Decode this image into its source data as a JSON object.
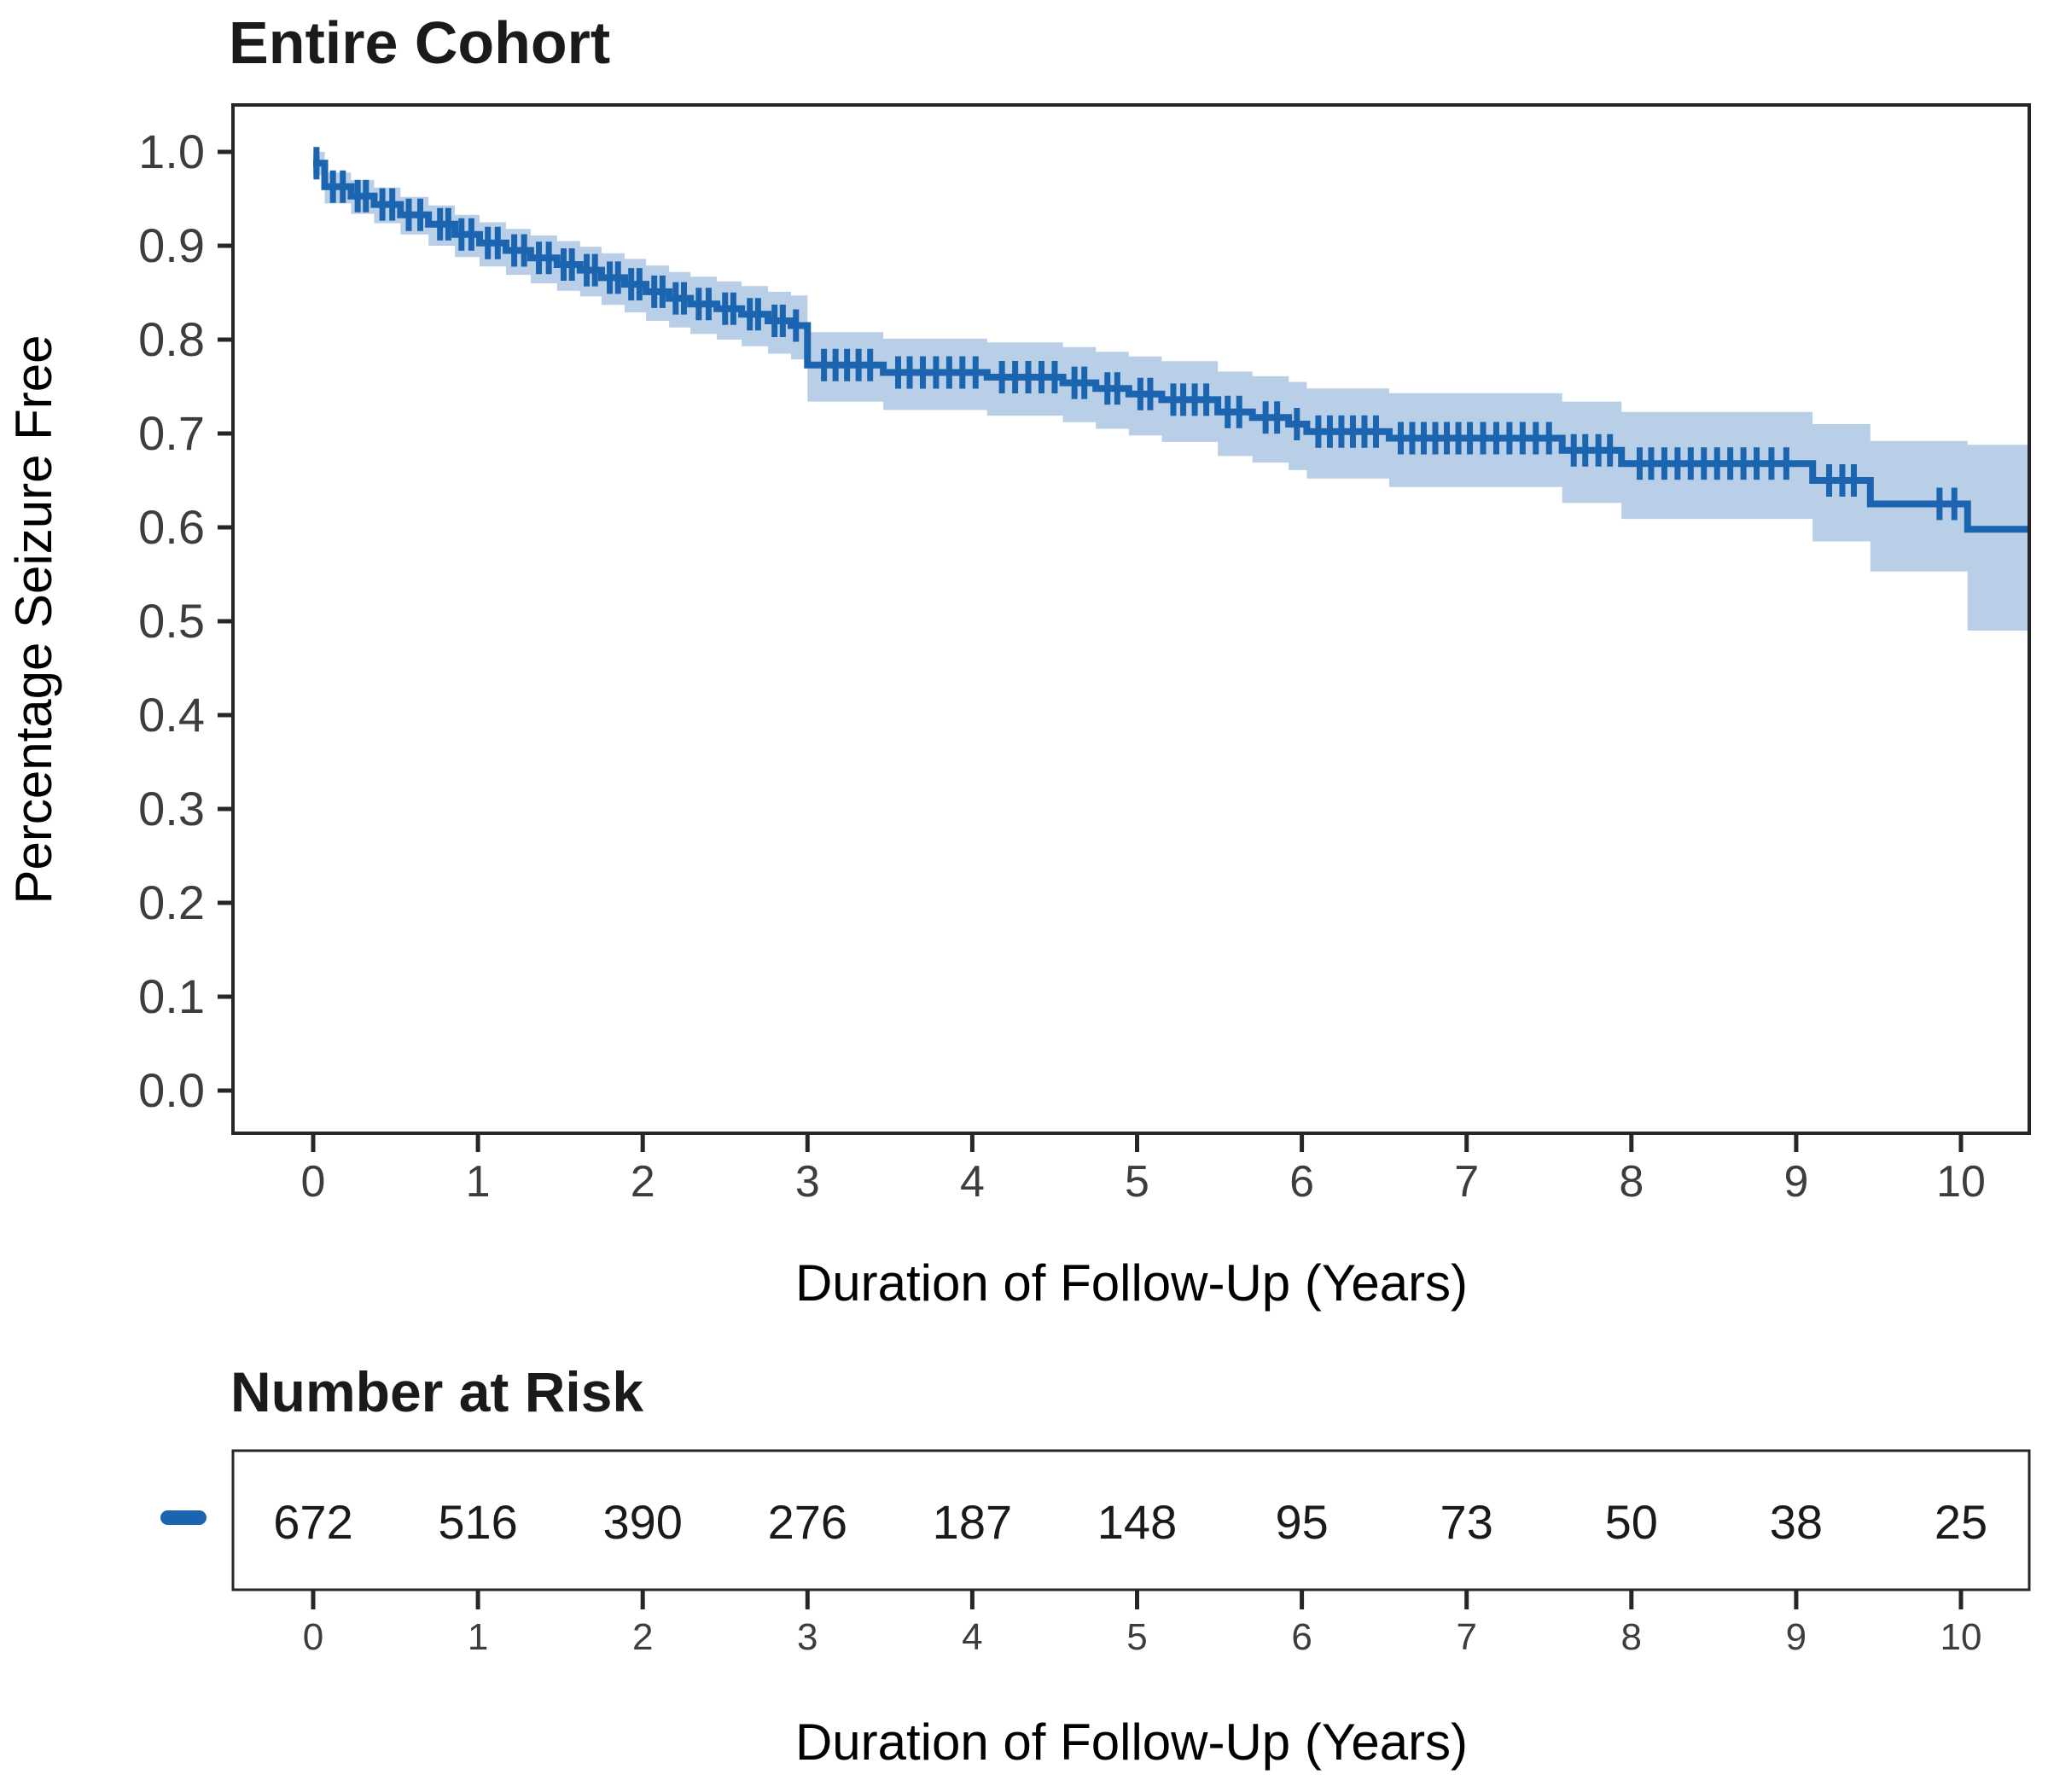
{
  "title": "Entire Cohort",
  "axes": {
    "ylabel": "Percentage Seizure Free",
    "xlabel": "Duration of Follow-Up (Years)",
    "ytick_labels": [
      "0.0",
      "0.1",
      "0.2",
      "0.3",
      "0.4",
      "0.5",
      "0.6",
      "0.7",
      "0.8",
      "0.9",
      "1.0"
    ],
    "xtick_labels": [
      "0",
      "1",
      "2",
      "3",
      "4",
      "5",
      "6",
      "7",
      "8",
      "9",
      "10"
    ]
  },
  "risk_table": {
    "heading": "Number at Risk",
    "xlabel": "Duration of Follow-Up (Years)",
    "tick_labels": [
      "0",
      "1",
      "2",
      "3",
      "4",
      "5",
      "6",
      "7",
      "8",
      "9",
      "10"
    ],
    "counts": [
      "672",
      "516",
      "390",
      "276",
      "187",
      "148",
      "95",
      "73",
      "50",
      "38",
      "25"
    ]
  },
  "colors": {
    "line": "#1b64b0",
    "band": "#b9cfe8",
    "axis": "#262626",
    "tick_text": "#3d3d3d",
    "text": "#000000"
  },
  "chart_data": {
    "type": "line",
    "subtype": "kaplan-meier-step",
    "title": "Entire Cohort",
    "xlabel": "Duration of Follow-Up (Years)",
    "ylabel": "Percentage Seizure Free",
    "xlim": [
      -0.5,
      10.45
    ],
    "ylim": [
      -0.05,
      1.05
    ],
    "x_ticks": [
      0,
      1,
      2,
      3,
      4,
      5,
      6,
      7,
      8,
      9,
      10
    ],
    "y_ticks": [
      0.0,
      0.1,
      0.2,
      0.3,
      0.4,
      0.5,
      0.6,
      0.7,
      0.8,
      0.9,
      1.0
    ],
    "grid": false,
    "legend_position": "left-of-risk-table",
    "end_time": 10.42,
    "steps": [
      [
        0.0,
        0.988
      ],
      [
        0.07,
        0.963
      ],
      [
        0.23,
        0.953
      ],
      [
        0.37,
        0.944
      ],
      [
        0.53,
        0.933
      ],
      [
        0.7,
        0.923
      ],
      [
        0.86,
        0.912
      ],
      [
        1.01,
        0.903
      ],
      [
        1.17,
        0.895
      ],
      [
        1.32,
        0.887
      ],
      [
        1.48,
        0.88
      ],
      [
        1.62,
        0.874
      ],
      [
        1.75,
        0.866
      ],
      [
        1.89,
        0.859
      ],
      [
        2.02,
        0.851
      ],
      [
        2.16,
        0.844
      ],
      [
        2.29,
        0.838
      ],
      [
        2.45,
        0.833
      ],
      [
        2.6,
        0.827
      ],
      [
        2.76,
        0.82
      ],
      [
        2.9,
        0.815
      ],
      [
        3.0,
        0.773
      ],
      [
        3.46,
        0.765
      ],
      [
        4.09,
        0.76
      ],
      [
        4.55,
        0.754
      ],
      [
        4.75,
        0.748
      ],
      [
        4.95,
        0.742
      ],
      [
        5.15,
        0.736
      ],
      [
        5.49,
        0.723
      ],
      [
        5.7,
        0.717
      ],
      [
        5.92,
        0.71
      ],
      [
        6.03,
        0.702
      ],
      [
        6.53,
        0.695
      ],
      [
        7.58,
        0.682
      ],
      [
        7.94,
        0.668
      ],
      [
        9.1,
        0.65
      ],
      [
        9.45,
        0.625
      ],
      [
        10.04,
        0.598
      ]
    ],
    "confidence_band": [
      [
        0.0,
        0.975,
        1.0
      ],
      [
        0.07,
        0.945,
        0.978
      ],
      [
        0.23,
        0.934,
        0.97
      ],
      [
        0.37,
        0.924,
        0.962
      ],
      [
        0.53,
        0.912,
        0.952
      ],
      [
        0.7,
        0.9,
        0.943
      ],
      [
        0.86,
        0.888,
        0.933
      ],
      [
        1.01,
        0.878,
        0.925
      ],
      [
        1.17,
        0.869,
        0.918
      ],
      [
        1.32,
        0.86,
        0.911
      ],
      [
        1.48,
        0.852,
        0.905
      ],
      [
        1.62,
        0.846,
        0.899
      ],
      [
        1.75,
        0.837,
        0.892
      ],
      [
        1.89,
        0.829,
        0.886
      ],
      [
        2.02,
        0.82,
        0.879
      ],
      [
        2.16,
        0.813,
        0.872
      ],
      [
        2.29,
        0.806,
        0.867
      ],
      [
        2.45,
        0.8,
        0.862
      ],
      [
        2.6,
        0.793,
        0.857
      ],
      [
        2.76,
        0.785,
        0.851
      ],
      [
        2.9,
        0.779,
        0.847
      ],
      [
        3.0,
        0.734,
        0.808
      ],
      [
        3.46,
        0.725,
        0.801
      ],
      [
        4.09,
        0.719,
        0.797
      ],
      [
        4.55,
        0.712,
        0.792
      ],
      [
        4.75,
        0.705,
        0.787
      ],
      [
        4.95,
        0.698,
        0.782
      ],
      [
        5.15,
        0.691,
        0.777
      ],
      [
        5.49,
        0.676,
        0.766
      ],
      [
        5.7,
        0.669,
        0.761
      ],
      [
        5.92,
        0.661,
        0.755
      ],
      [
        6.03,
        0.652,
        0.748
      ],
      [
        6.53,
        0.643,
        0.743
      ],
      [
        7.58,
        0.626,
        0.734
      ],
      [
        7.94,
        0.609,
        0.723
      ],
      [
        9.1,
        0.585,
        0.71
      ],
      [
        9.45,
        0.553,
        0.692
      ],
      [
        10.04,
        0.49,
        0.688
      ]
    ],
    "censor_times": [
      0.02,
      0.12,
      0.18,
      0.27,
      0.32,
      0.42,
      0.48,
      0.58,
      0.65,
      0.77,
      0.82,
      0.9,
      0.96,
      1.06,
      1.12,
      1.22,
      1.28,
      1.37,
      1.43,
      1.52,
      1.57,
      1.66,
      1.71,
      1.8,
      1.85,
      1.93,
      1.98,
      2.07,
      2.12,
      2.2,
      2.25,
      2.34,
      2.4,
      2.5,
      2.55,
      2.65,
      2.7,
      2.8,
      2.85,
      2.93,
      3.1,
      3.17,
      3.24,
      3.31,
      3.38,
      3.55,
      3.62,
      3.7,
      3.78,
      3.86,
      3.94,
      4.02,
      4.18,
      4.26,
      4.34,
      4.42,
      4.5,
      4.62,
      4.68,
      4.82,
      4.88,
      5.02,
      5.08,
      5.22,
      5.28,
      5.35,
      5.42,
      5.55,
      5.62,
      5.78,
      5.85,
      5.97,
      6.1,
      6.17,
      6.24,
      6.31,
      6.38,
      6.45,
      6.6,
      6.67,
      6.74,
      6.81,
      6.88,
      6.95,
      7.02,
      7.1,
      7.18,
      7.26,
      7.34,
      7.42,
      7.5,
      7.65,
      7.72,
      7.8,
      7.87,
      8.05,
      8.12,
      8.2,
      8.28,
      8.36,
      8.44,
      8.52,
      8.6,
      8.68,
      8.76,
      8.85,
      8.94,
      9.2,
      9.28,
      9.35,
      9.87,
      9.96
    ],
    "number_at_risk": {
      "times": [
        0,
        1,
        2,
        3,
        4,
        5,
        6,
        7,
        8,
        9,
        10
      ],
      "counts": [
        672,
        516,
        390,
        276,
        187,
        148,
        95,
        73,
        50,
        38,
        25
      ]
    }
  }
}
